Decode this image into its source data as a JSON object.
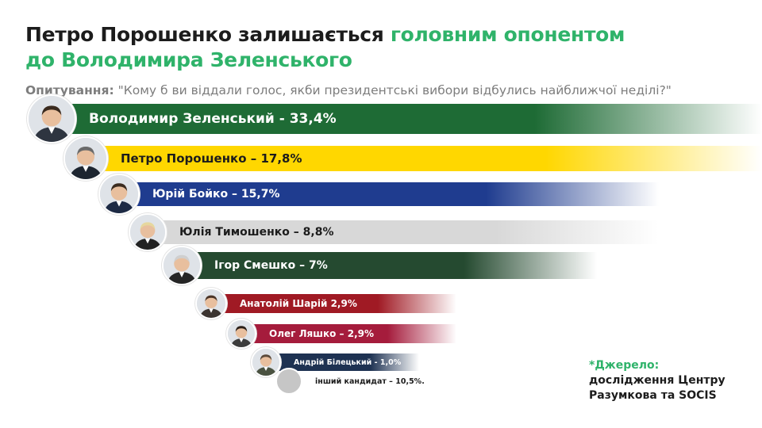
{
  "header": {
    "title_part1": "Петро Порошенко залишається ",
    "title_accent1": "головним опонентом",
    "title_accent2": "до Володимира Зеленського",
    "subtitle_label": "Опитування:",
    "subtitle_question": " \"Кому б ви віддали голос, якби президентські вибори відбулись найближчої неділі?\""
  },
  "colors": {
    "accent": "#2fb36a",
    "text": "#1c1c1c",
    "muted": "#7d7d7d"
  },
  "chart_data": {
    "type": "bar",
    "orientation": "horizontal",
    "grid": false,
    "legend": "none",
    "categories": [
      "Володимир Зеленський",
      "Петро Порошенко",
      "Юрій Бойко",
      "Юлія Тимошенко",
      "Ігор Смешко",
      "Анатолій Шарій",
      "Олег Ляшко",
      "Андрій Білецький",
      "інший кандидат"
    ],
    "values": [
      33.4,
      17.8,
      15.7,
      8.8,
      7,
      2.9,
      2.9,
      1.0,
      10.5
    ],
    "bar_labels": [
      "Володимир Зеленський - 33,4%",
      "Петро Порошенко – 17,8%",
      "Юрій Бойко – 15,7%",
      "Юлія Тимошенко – 8,8%",
      "Ігор Смешко – 7%",
      "Анатолій Шарій 2,9%",
      "Олег Ляшко – 2,9%",
      "Андрій Білецький - 1,0%",
      "інший кандидат – 10,5%."
    ],
    "bar_colors": [
      "#1e6b35",
      "#ffd700",
      "#1f3c8f",
      "#d8d8d8",
      "#254a30",
      "#a01a24",
      "#a51c3c",
      "#1e3252",
      "#c6c6c6"
    ],
    "label_colors": [
      "#ffffff",
      "#1c1c1c",
      "#ffffff",
      "#1c1c1c",
      "#ffffff",
      "#ffffff",
      "#ffffff",
      "#ffffff",
      "#1c1c1c"
    ]
  },
  "source": {
    "title": "*Джерело:",
    "text": "дослідження Центру Разумкова та SOCIS"
  }
}
